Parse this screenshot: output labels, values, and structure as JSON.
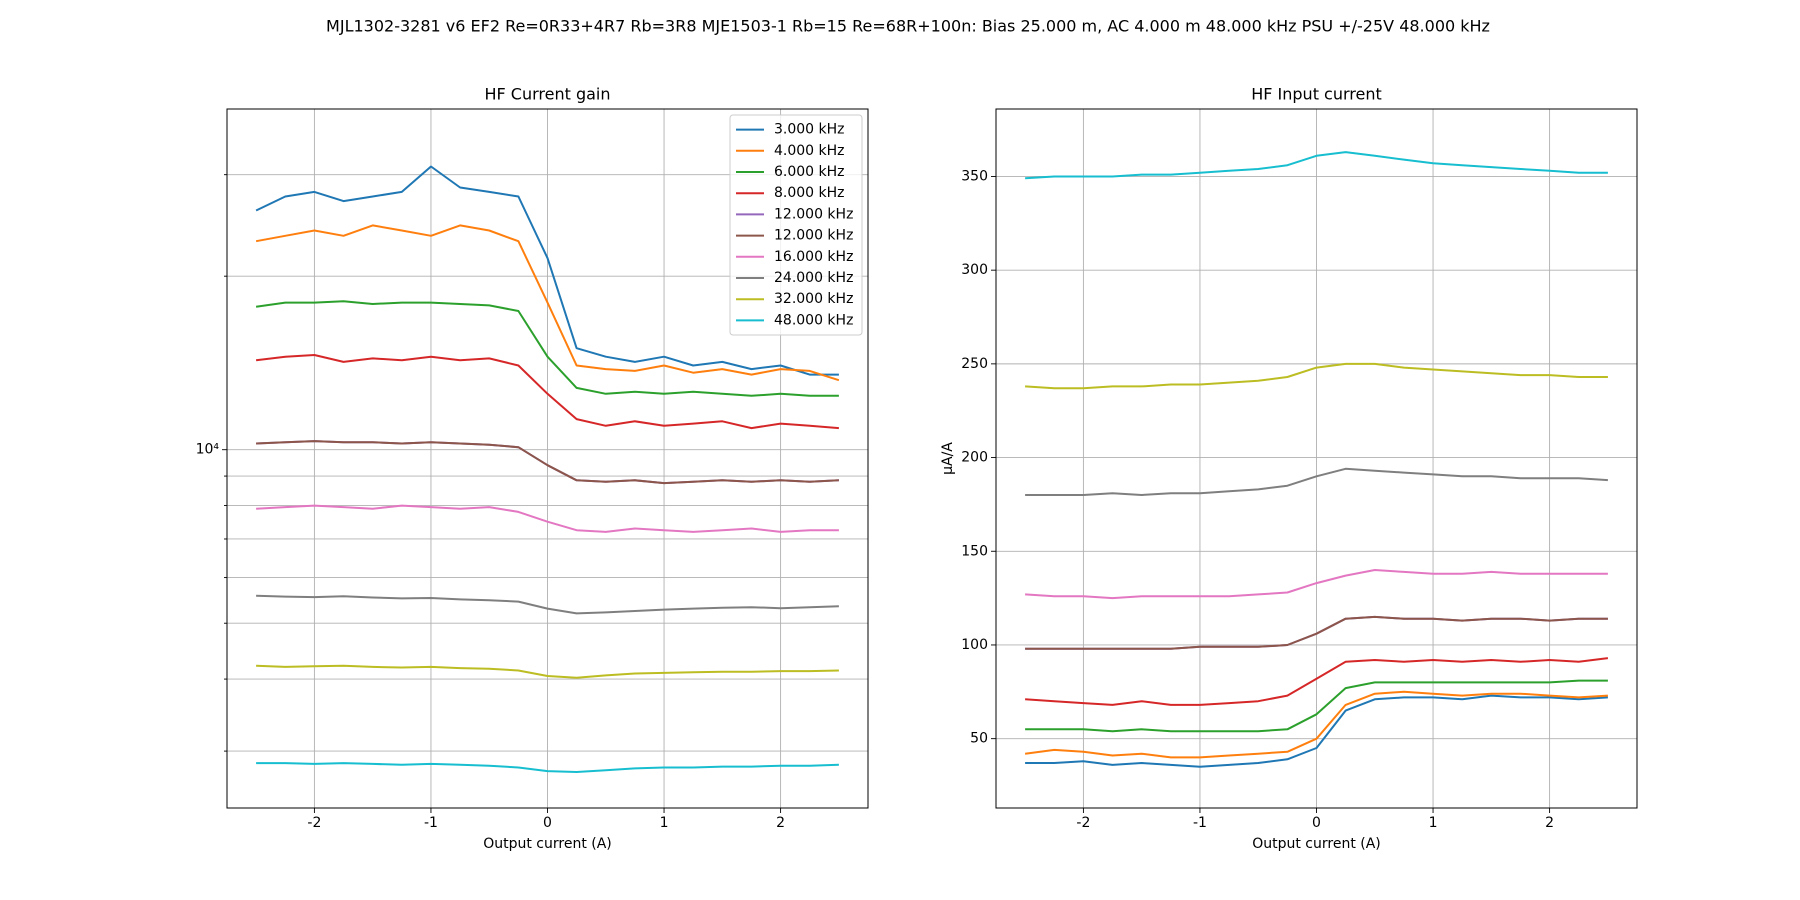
{
  "title": "MJL1302-3281 v6 EF2 Re=0R33+4R7 Rb=3R8 MJE1503-1 Rb=15 Re=68R+100n: Bias 25.000 m, AC 4.000 m 48.000 kHz PSU +/-25V 48.000 kHz",
  "chart_data": [
    {
      "type": "line",
      "title": "HF Current gain",
      "xlabel": "Output current (A)",
      "log_y": true,
      "grid": true,
      "legend": "upper right",
      "xlim": [
        -2.75,
        2.75
      ],
      "xticks": [
        -2,
        -1,
        0,
        1,
        2
      ],
      "ylim": [
        2390,
        39000
      ],
      "yticks": [
        {
          "value": 10000,
          "label": "10⁴"
        }
      ],
      "yminorticks": [
        3000,
        4000,
        5000,
        6000,
        7000,
        8000,
        9000,
        20000,
        30000
      ],
      "x": [
        -2.5,
        -2.25,
        -2,
        -1.75,
        -1.5,
        -1.25,
        -1,
        -0.75,
        -0.5,
        -0.25,
        0,
        0.25,
        0.5,
        0.75,
        1,
        1.25,
        1.5,
        1.75,
        2,
        2.25,
        2.5
      ],
      "series": [
        {
          "name": "3.000 kHz",
          "color": "#1f77b4",
          "values": [
            26000,
            27500,
            28000,
            27000,
            27500,
            28000,
            31000,
            28500,
            28000,
            27500,
            21500,
            15000,
            14500,
            14200,
            14500,
            14000,
            14200,
            13800,
            14000,
            13500,
            13500
          ]
        },
        {
          "name": "4.000 kHz",
          "color": "#ff7f0e",
          "values": [
            23000,
            23500,
            24000,
            23500,
            24500,
            24000,
            23500,
            24500,
            24000,
            23000,
            18000,
            14000,
            13800,
            13700,
            14000,
            13600,
            13800,
            13500,
            13800,
            13700,
            13200
          ]
        },
        {
          "name": "6.000 kHz",
          "color": "#2ca02c",
          "values": [
            17700,
            18000,
            18000,
            18100,
            17900,
            18000,
            18000,
            17900,
            17800,
            17400,
            14500,
            12800,
            12500,
            12600,
            12500,
            12600,
            12500,
            12400,
            12500,
            12400,
            12400
          ]
        },
        {
          "name": "8.000 kHz",
          "color": "#d62728",
          "values": [
            14300,
            14500,
            14600,
            14200,
            14400,
            14300,
            14500,
            14300,
            14400,
            14000,
            12500,
            11300,
            11000,
            11200,
            11000,
            11100,
            11200,
            10900,
            11100,
            11000,
            10900
          ]
        },
        {
          "name": "12.000 kHz",
          "color": "#9467bd",
          "values": [
            10250,
            10300,
            10350,
            10300,
            10300,
            10250,
            10300,
            10250,
            10200,
            10100,
            9400,
            8850,
            8800,
            8850,
            8750,
            8800,
            8850,
            8800,
            8850,
            8800,
            8850
          ]
        },
        {
          "name": "12.000 kHz",
          "color": "#8c564b",
          "values": [
            10250,
            10300,
            10350,
            10300,
            10300,
            10250,
            10300,
            10250,
            10200,
            10100,
            9400,
            8850,
            8800,
            8850,
            8750,
            8800,
            8850,
            8800,
            8850,
            8800,
            8850
          ]
        },
        {
          "name": "16.000 kHz",
          "color": "#e377c2",
          "values": [
            7900,
            7950,
            8000,
            7950,
            7900,
            8000,
            7950,
            7900,
            7950,
            7800,
            7500,
            7250,
            7200,
            7300,
            7250,
            7200,
            7250,
            7300,
            7200,
            7250,
            7250
          ]
        },
        {
          "name": "24.000 kHz",
          "color": "#7f7f7f",
          "values": [
            5580,
            5560,
            5550,
            5570,
            5540,
            5520,
            5530,
            5500,
            5480,
            5450,
            5300,
            5200,
            5220,
            5250,
            5280,
            5300,
            5320,
            5330,
            5310,
            5330,
            5350
          ]
        },
        {
          "name": "32.000 kHz",
          "color": "#bcbd22",
          "values": [
            4220,
            4200,
            4210,
            4220,
            4200,
            4190,
            4200,
            4180,
            4170,
            4140,
            4050,
            4020,
            4060,
            4090,
            4100,
            4110,
            4120,
            4120,
            4130,
            4130,
            4140
          ]
        },
        {
          "name": "48.000 kHz",
          "color": "#17becf",
          "values": [
            2860,
            2860,
            2850,
            2860,
            2850,
            2840,
            2850,
            2840,
            2830,
            2810,
            2770,
            2760,
            2780,
            2800,
            2810,
            2810,
            2820,
            2820,
            2830,
            2830,
            2840
          ]
        }
      ]
    },
    {
      "type": "line",
      "title": "HF Input current",
      "xlabel": "Output current (A)",
      "ylabel": "μA/A",
      "grid": true,
      "xlim": [
        -2.75,
        2.75
      ],
      "xticks": [
        -2,
        -1,
        0,
        1,
        2
      ],
      "ylim": [
        13,
        386
      ],
      "yticks": [
        50,
        100,
        150,
        200,
        250,
        300,
        350
      ],
      "x": [
        -2.5,
        -2.25,
        -2,
        -1.75,
        -1.5,
        -1.25,
        -1,
        -0.75,
        -0.5,
        -0.25,
        0,
        0.25,
        0.5,
        0.75,
        1,
        1.25,
        1.5,
        1.75,
        2,
        2.25,
        2.5
      ],
      "series": [
        {
          "color": "#1f77b4",
          "values": [
            37,
            37,
            38,
            36,
            37,
            36,
            35,
            36,
            37,
            39,
            45,
            65,
            71,
            72,
            72,
            71,
            73,
            72,
            72,
            71,
            72
          ]
        },
        {
          "color": "#ff7f0e",
          "values": [
            42,
            44,
            43,
            41,
            42,
            40,
            40,
            41,
            42,
            43,
            50,
            68,
            74,
            75,
            74,
            73,
            74,
            74,
            73,
            72,
            73
          ]
        },
        {
          "color": "#2ca02c",
          "values": [
            55,
            55,
            55,
            54,
            55,
            54,
            54,
            54,
            54,
            55,
            63,
            77,
            80,
            80,
            80,
            80,
            80,
            80,
            80,
            81,
            81
          ]
        },
        {
          "color": "#d62728",
          "values": [
            71,
            70,
            69,
            68,
            70,
            68,
            68,
            69,
            70,
            73,
            82,
            91,
            92,
            91,
            92,
            91,
            92,
            91,
            92,
            91,
            93
          ]
        },
        {
          "color": "#9467bd",
          "values": [
            98,
            98,
            98,
            98,
            98,
            98,
            99,
            99,
            99,
            100,
            106,
            114,
            115,
            114,
            114,
            113,
            114,
            114,
            113,
            114,
            114
          ]
        },
        {
          "color": "#8c564b",
          "values": [
            98,
            98,
            98,
            98,
            98,
            98,
            99,
            99,
            99,
            100,
            106,
            114,
            115,
            114,
            114,
            113,
            114,
            114,
            113,
            114,
            114
          ]
        },
        {
          "color": "#e377c2",
          "values": [
            127,
            126,
            126,
            125,
            126,
            126,
            126,
            126,
            127,
            128,
            133,
            137,
            140,
            139,
            138,
            138,
            139,
            138,
            138,
            138,
            138
          ]
        },
        {
          "color": "#7f7f7f",
          "values": [
            180,
            180,
            180,
            181,
            180,
            181,
            181,
            182,
            183,
            185,
            190,
            194,
            193,
            192,
            191,
            190,
            190,
            189,
            189,
            189,
            188
          ]
        },
        {
          "color": "#bcbd22",
          "values": [
            238,
            237,
            237,
            238,
            238,
            239,
            239,
            240,
            241,
            243,
            248,
            250,
            250,
            248,
            247,
            246,
            245,
            244,
            244,
            243,
            243
          ]
        },
        {
          "color": "#17becf",
          "values": [
            349,
            350,
            350,
            350,
            351,
            351,
            352,
            353,
            354,
            356,
            361,
            363,
            361,
            359,
            357,
            356,
            355,
            354,
            353,
            352,
            352
          ]
        }
      ]
    }
  ]
}
